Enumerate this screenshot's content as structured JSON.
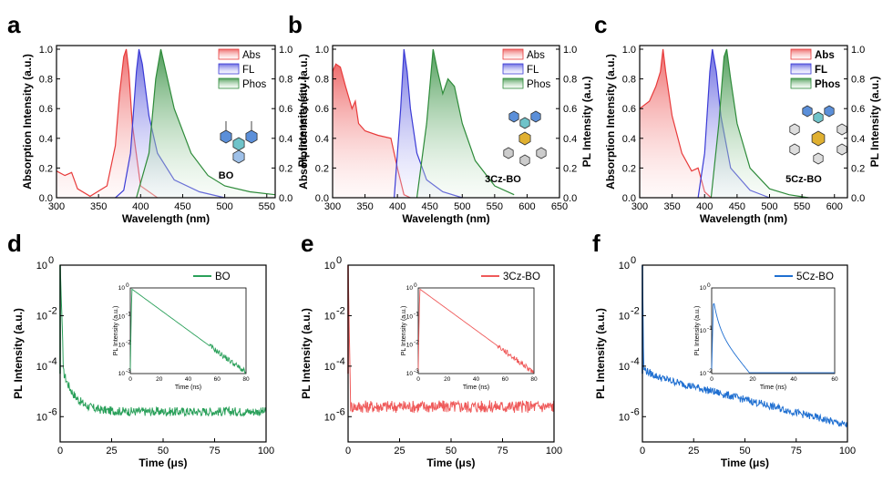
{
  "figure": {
    "abs_panels": [
      {
        "letter": "a",
        "molecule": "BO",
        "xlabel": "Wavelength (nm)",
        "ylabel_left": "Absorption Intensity (a.u.)",
        "ylabel_right": "PL Intensity (a.u.)",
        "x_ticks": [
          "300",
          "350",
          "400",
          "450",
          "500",
          "550"
        ],
        "y_ticks": [
          "0.0",
          "0.2",
          "0.4",
          "0.6",
          "0.8",
          "1.0"
        ],
        "legend": [
          "Abs",
          "FL",
          "Phos"
        ]
      },
      {
        "letter": "b",
        "molecule": "3Cz-BO",
        "xlabel": "Wavelength (nm)",
        "ylabel_left": "Absorption Intensity (a.u.)",
        "ylabel_right": "PL Intensity (a.u.)",
        "x_ticks": [
          "300",
          "350",
          "400",
          "450",
          "500",
          "550",
          "600",
          "650"
        ],
        "y_ticks": [
          "0.0",
          "0.2",
          "0.4",
          "0.6",
          "0.8",
          "1.0"
        ],
        "legend": [
          "Abs",
          "FL",
          "Phos"
        ]
      },
      {
        "letter": "c",
        "molecule": "5Cz-BO",
        "xlabel": "Wavelength (nm)",
        "ylabel_left": "Absorption Intensity (a.u.)",
        "ylabel_right": "PL Intensity (a.u.)",
        "x_ticks": [
          "300",
          "350",
          "400",
          "450",
          "500",
          "550",
          "600"
        ],
        "y_ticks": [
          "0.0",
          "0.2",
          "0.4",
          "0.6",
          "0.8",
          "1.0"
        ],
        "legend": [
          "Abs",
          "FL",
          "Phos"
        ]
      }
    ],
    "decay_panels": [
      {
        "letter": "d",
        "legend": "BO",
        "xlabel": "Time (μs)",
        "ylabel": "PL Intensity (a.u.)",
        "x_ticks": [
          "0",
          "25",
          "50",
          "75",
          "100"
        ],
        "y_ticks": [
          "10",
          "10",
          "10",
          "10"
        ],
        "y_exps": [
          "0",
          "-2",
          "-4",
          "-6"
        ],
        "inset": {
          "xlabel": "Time (ns)",
          "ylabel": "PL Intensity (a.u.)",
          "x_ticks": [
            "0",
            "20",
            "40",
            "60",
            "80"
          ],
          "y_ticks": [
            "10",
            "10",
            "10",
            "10"
          ],
          "y_exps": [
            "0",
            "-1",
            "-2",
            "-3"
          ]
        }
      },
      {
        "letter": "e",
        "legend": "3Cz-BO",
        "xlabel": "Time (μs)",
        "ylabel": "PL Intensity (a.u.)",
        "x_ticks": [
          "0",
          "25",
          "50",
          "75",
          "100"
        ],
        "y_ticks": [
          "10",
          "10",
          "10",
          "10"
        ],
        "y_exps": [
          "0",
          "-2",
          "-4",
          "-6"
        ],
        "inset": {
          "xlabel": "Time (ns)",
          "ylabel": "PL Intensity (a.u.)",
          "x_ticks": [
            "0",
            "20",
            "40",
            "60",
            "80"
          ],
          "y_ticks": [
            "10",
            "10",
            "10",
            "10"
          ],
          "y_exps": [
            "0",
            "-1",
            "-2",
            "-3"
          ]
        }
      },
      {
        "letter": "f",
        "legend": "5Cz-BO",
        "xlabel": "Time (μs)",
        "ylabel": "PL Intensity (a.u.)",
        "x_ticks": [
          "0",
          "25",
          "50",
          "75",
          "100"
        ],
        "y_ticks": [
          "10",
          "10",
          "10",
          "10"
        ],
        "y_exps": [
          "0",
          "-2",
          "-4",
          "-6"
        ],
        "inset": {
          "xlabel": "Time (ns)",
          "ylabel": "PL Intensity (a.u.)",
          "x_ticks": [
            "0",
            "20",
            "40",
            "60"
          ],
          "y_ticks": [
            "10",
            "10",
            "10"
          ],
          "y_exps": [
            "0",
            "-1",
            "-2"
          ]
        }
      }
    ],
    "colors": {
      "abs": "#e83b3b",
      "fl": "#3b3bd6",
      "phos": "#2e8b3a",
      "bo": "#2aa05a",
      "cz3": "#ef5a5a",
      "cz5": "#1f6fd1"
    }
  },
  "chart_data": [
    {
      "type": "line",
      "panel": "a",
      "xlim": [
        300,
        560
      ],
      "ylim": [
        0,
        1
      ],
      "series": [
        {
          "name": "Abs",
          "x": [
            300,
            310,
            318,
            325,
            340,
            360,
            370,
            375,
            380,
            383,
            386,
            390,
            400,
            420
          ],
          "values": [
            0.18,
            0.15,
            0.17,
            0.06,
            0.01,
            0.08,
            0.35,
            0.7,
            0.95,
            1.0,
            0.85,
            0.5,
            0.08,
            0.0
          ]
        },
        {
          "name": "FL",
          "x": [
            370,
            380,
            388,
            395,
            398,
            402,
            410,
            420,
            440,
            470,
            500
          ],
          "values": [
            0.0,
            0.05,
            0.3,
            0.85,
            1.0,
            0.9,
            0.55,
            0.3,
            0.12,
            0.04,
            0.0
          ]
        },
        {
          "name": "Phos",
          "x": [
            395,
            410,
            418,
            424,
            428,
            440,
            460,
            480,
            500,
            530,
            560
          ],
          "values": [
            0.0,
            0.3,
            0.8,
            1.0,
            0.9,
            0.6,
            0.3,
            0.15,
            0.08,
            0.04,
            0.02
          ]
        }
      ]
    },
    {
      "type": "line",
      "panel": "b",
      "xlim": [
        300,
        650
      ],
      "ylim": [
        0,
        1
      ],
      "series": [
        {
          "name": "Abs",
          "x": [
            300,
            305,
            312,
            320,
            330,
            335,
            340,
            350,
            370,
            390,
            400,
            410,
            420
          ],
          "values": [
            0.85,
            0.9,
            0.88,
            0.75,
            0.6,
            0.65,
            0.5,
            0.45,
            0.42,
            0.4,
            0.2,
            0.02,
            0.0
          ]
        },
        {
          "name": "FL",
          "x": [
            395,
            405,
            410,
            415,
            420,
            430,
            445,
            470,
            500
          ],
          "values": [
            0.0,
            0.6,
            1.0,
            0.85,
            0.6,
            0.3,
            0.12,
            0.04,
            0.0
          ]
        },
        {
          "name": "Phos",
          "x": [
            430,
            445,
            455,
            462,
            470,
            478,
            488,
            500,
            520,
            550,
            580
          ],
          "values": [
            0.0,
            0.5,
            1.0,
            0.85,
            0.7,
            0.8,
            0.75,
            0.5,
            0.25,
            0.08,
            0.02
          ]
        }
      ]
    },
    {
      "type": "line",
      "panel": "c",
      "xlim": [
        300,
        620
      ],
      "ylim": [
        0,
        1
      ],
      "series": [
        {
          "name": "Abs",
          "x": [
            300,
            315,
            325,
            332,
            336,
            340,
            350,
            365,
            380,
            390,
            395,
            400,
            410
          ],
          "values": [
            0.6,
            0.65,
            0.75,
            0.85,
            1.0,
            0.85,
            0.55,
            0.3,
            0.18,
            0.2,
            0.12,
            0.04,
            0.0
          ]
        },
        {
          "name": "FL",
          "x": [
            390,
            400,
            408,
            412,
            418,
            425,
            440,
            470,
            500
          ],
          "values": [
            0.0,
            0.3,
            0.85,
            1.0,
            0.85,
            0.55,
            0.2,
            0.05,
            0.0
          ]
        },
        {
          "name": "Phos",
          "x": [
            410,
            422,
            430,
            434,
            440,
            450,
            470,
            500,
            530,
            560
          ],
          "values": [
            0.0,
            0.5,
            0.95,
            1.0,
            0.8,
            0.5,
            0.2,
            0.06,
            0.02,
            0.0
          ]
        }
      ]
    }
  ]
}
